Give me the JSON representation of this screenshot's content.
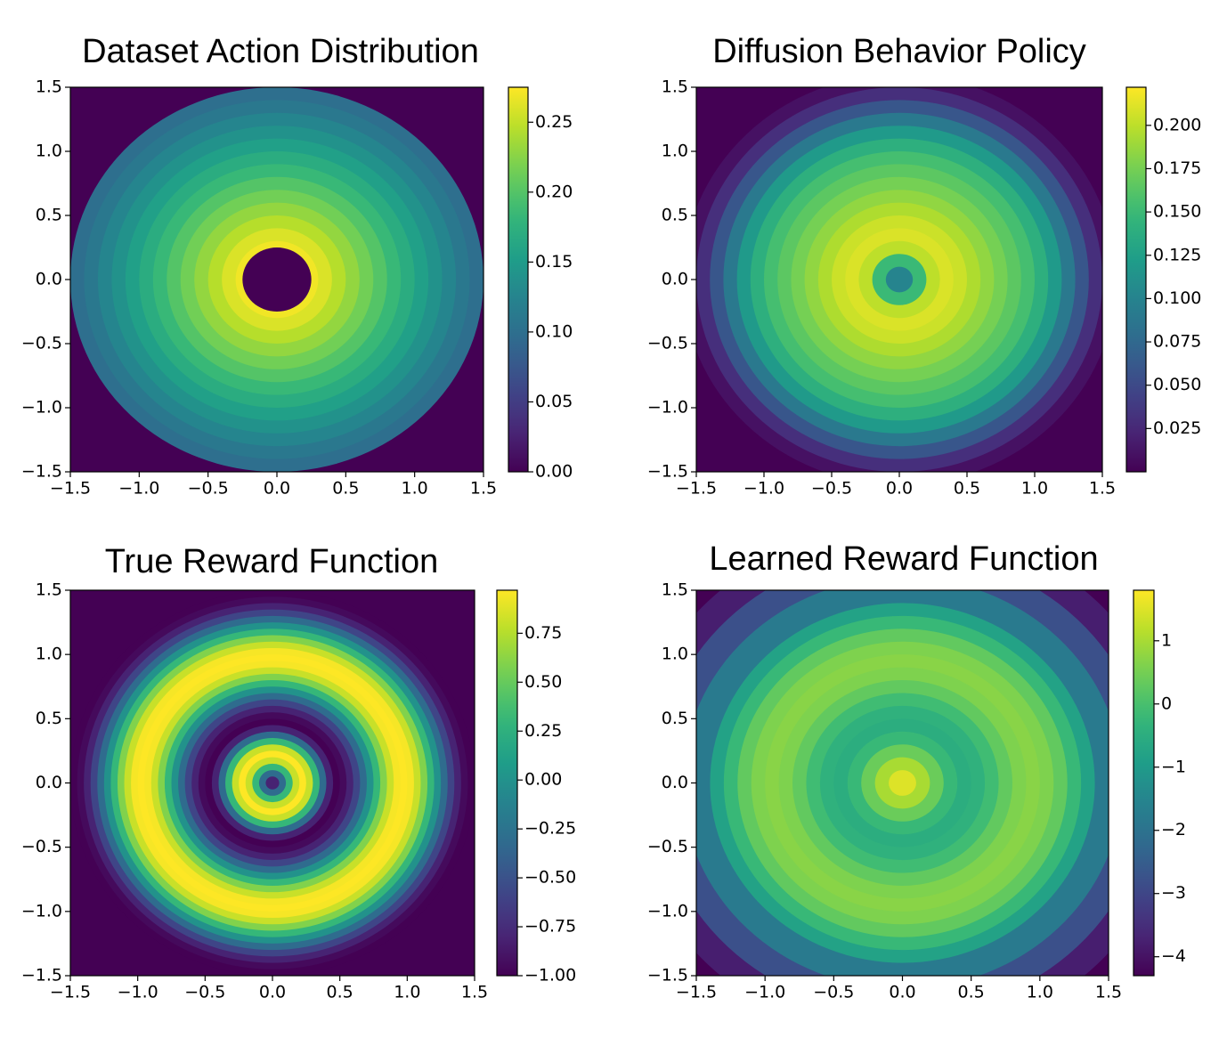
{
  "chart_data": [
    {
      "type": "radial_heatmap",
      "title": "Dataset Action Distribution",
      "colormap": "viridis",
      "xlim": [
        -1.5,
        1.5
      ],
      "ylim": [
        -1.5,
        1.5
      ],
      "xticks": [
        {
          "value": -1.5,
          "label": "−1.5"
        },
        {
          "value": -1.0,
          "label": "−1.0"
        },
        {
          "value": -0.5,
          "label": "−0.5"
        },
        {
          "value": 0,
          "label": "0.0"
        },
        0.5,
        {
          "value": 1.0,
          "label": "1.0"
        },
        1.5
      ],
      "yticks": [
        {
          "value": -1.5,
          "label": "−1.5"
        },
        {
          "value": -1.0,
          "label": "−1.0"
        },
        {
          "value": -0.5,
          "label": "−0.5"
        },
        {
          "value": 0,
          "label": "0.0"
        },
        0.5,
        {
          "value": 1.0,
          "label": "1.0"
        },
        1.5
      ],
      "clim": [
        0,
        0.275
      ],
      "cticks": [
        {
          "value": 0,
          "label": "0.00"
        },
        0.05,
        {
          "value": 0.1,
          "label": "0.10"
        },
        0.15,
        {
          "value": 0.2,
          "label": "0.20"
        },
        0.25
      ],
      "r": [
        2.2,
        1.5,
        1.4,
        1.3,
        1.2,
        1.1,
        1.0,
        0.9,
        0.8,
        0.7,
        0.6,
        0.5,
        0.4,
        0.3,
        0.25
      ],
      "values": [
        0,
        0.1,
        0.11,
        0.125,
        0.14,
        0.155,
        0.17,
        0.185,
        0.2,
        0.215,
        0.23,
        0.245,
        0.26,
        0.27,
        0
      ]
    },
    {
      "type": "radial_heatmap",
      "title": "Diffusion Behavior Policy",
      "colormap": "viridis",
      "xlim": [
        -1.5,
        1.5
      ],
      "ylim": [
        -1.5,
        1.5
      ],
      "xticks": [
        {
          "value": -1.5,
          "label": "−1.5"
        },
        {
          "value": -1.0,
          "label": "−1.0"
        },
        {
          "value": -0.5,
          "label": "−0.5"
        },
        {
          "value": 0,
          "label": "0.0"
        },
        0.5,
        {
          "value": 1.0,
          "label": "1.0"
        },
        1.5
      ],
      "yticks": [
        {
          "value": -1.5,
          "label": "−1.5"
        },
        {
          "value": -1.0,
          "label": "−1.0"
        },
        {
          "value": -0.5,
          "label": "−0.5"
        },
        {
          "value": 0,
          "label": "0.0"
        },
        0.5,
        {
          "value": 1.0,
          "label": "1.0"
        },
        1.5
      ],
      "clim": [
        0.0,
        0.222
      ],
      "cticks": [
        0.025,
        {
          "value": 0.05,
          "label": "0.050"
        },
        0.075,
        {
          "value": 0.1,
          "label": "0.100"
        },
        0.125,
        {
          "value": 0.15,
          "label": "0.150"
        },
        0.175,
        {
          "value": 0.2,
          "label": "0.200"
        }
      ],
      "r": [
        2.2,
        1.6,
        1.5,
        1.4,
        1.3,
        1.2,
        1.1,
        1.0,
        0.9,
        0.8,
        0.7,
        0.6,
        0.5,
        0.4,
        0.3,
        0.2,
        0.1
      ],
      "values": [
        0.0,
        0.01,
        0.03,
        0.06,
        0.09,
        0.12,
        0.14,
        0.155,
        0.165,
        0.175,
        0.185,
        0.195,
        0.205,
        0.21,
        0.2,
        0.15,
        0.1
      ]
    },
    {
      "type": "radial_heatmap",
      "title": "True Reward Function",
      "colormap": "viridis",
      "xlim": [
        -1.5,
        1.5
      ],
      "ylim": [
        -1.5,
        1.5
      ],
      "xticks": [
        {
          "value": -1.5,
          "label": "−1.5"
        },
        {
          "value": -1.0,
          "label": "−1.0"
        },
        {
          "value": -0.5,
          "label": "−0.5"
        },
        {
          "value": 0,
          "label": "0.0"
        },
        0.5,
        {
          "value": 1.0,
          "label": "1.0"
        },
        1.5
      ],
      "yticks": [
        {
          "value": -1.5,
          "label": "−1.5"
        },
        {
          "value": -1.0,
          "label": "−1.0"
        },
        {
          "value": -0.5,
          "label": "−0.5"
        },
        {
          "value": 0,
          "label": "0.0"
        },
        0.5,
        {
          "value": 1.0,
          "label": "1.0"
        },
        1.5
      ],
      "clim": [
        -1,
        0.97
      ],
      "cticks": [
        {
          "value": -1,
          "label": "−1.00"
        },
        {
          "value": -0.75,
          "label": "−0.75"
        },
        {
          "value": -0.5,
          "label": "−0.50"
        },
        {
          "value": -0.25,
          "label": "−0.25"
        },
        {
          "value": 0,
          "label": "0.00"
        },
        0.25,
        {
          "value": 0.5,
          "label": "0.50"
        },
        0.75
      ],
      "r": [
        2.2,
        1.5,
        1.45,
        1.4,
        1.35,
        1.3,
        1.25,
        1.2,
        1.15,
        1.1,
        1.05,
        1.0,
        0.95,
        0.9,
        0.85,
        0.8,
        0.75,
        0.7,
        0.65,
        0.6,
        0.55,
        0.5,
        0.45,
        0.4,
        0.35,
        0.3,
        0.25,
        0.2,
        0.15,
        0.1,
        0.05
      ],
      "values": [
        -1,
        -1,
        -0.95,
        -0.81,
        -0.59,
        -0.31,
        0,
        0.31,
        0.59,
        0.81,
        0.95,
        0.97,
        0.95,
        0.81,
        0.59,
        0.31,
        0,
        -0.31,
        -0.59,
        -0.81,
        -0.95,
        -1,
        -0.81,
        -0.31,
        0.31,
        0.81,
        0.97,
        0.81,
        0.31,
        -0.31,
        -0.81
      ]
    },
    {
      "type": "radial_heatmap",
      "title": "Learned Reward Function",
      "colormap": "viridis",
      "xlim": [
        -1.5,
        1.5
      ],
      "ylim": [
        -1.5,
        1.5
      ],
      "xticks": [
        {
          "value": -1.5,
          "label": "−1.5"
        },
        {
          "value": -1.0,
          "label": "−1.0"
        },
        {
          "value": -0.5,
          "label": "−0.5"
        },
        {
          "value": 0,
          "label": "0.0"
        },
        0.5,
        {
          "value": 1.0,
          "label": "1.0"
        },
        1.5
      ],
      "yticks": [
        {
          "value": -1.5,
          "label": "−1.5"
        },
        {
          "value": -1.0,
          "label": "−1.0"
        },
        {
          "value": -0.5,
          "label": "−0.5"
        },
        {
          "value": 0,
          "label": "0.0"
        },
        0.5,
        {
          "value": 1.0,
          "label": "1.0"
        },
        1.5
      ],
      "clim": [
        -4.3,
        1.8
      ],
      "cticks": [
        {
          "value": -4,
          "label": "−4"
        },
        {
          "value": -3,
          "label": "−3"
        },
        {
          "value": -2,
          "label": "−2"
        },
        {
          "value": -1,
          "label": "−1"
        },
        0,
        1
      ],
      "r": [
        2.2,
        2.0,
        1.8,
        1.6,
        1.4,
        1.3,
        1.2,
        1.1,
        1.0,
        0.9,
        0.8,
        0.7,
        0.6,
        0.5,
        0.4,
        0.3,
        0.2,
        0.1
      ],
      "values": [
        -4.3,
        -3.8,
        -2.8,
        -1.8,
        -0.8,
        -0.2,
        0.3,
        0.6,
        0.7,
        0.6,
        0.3,
        -0.1,
        -0.4,
        -0.5,
        -0.2,
        0.4,
        1.0,
        1.5
      ]
    }
  ]
}
